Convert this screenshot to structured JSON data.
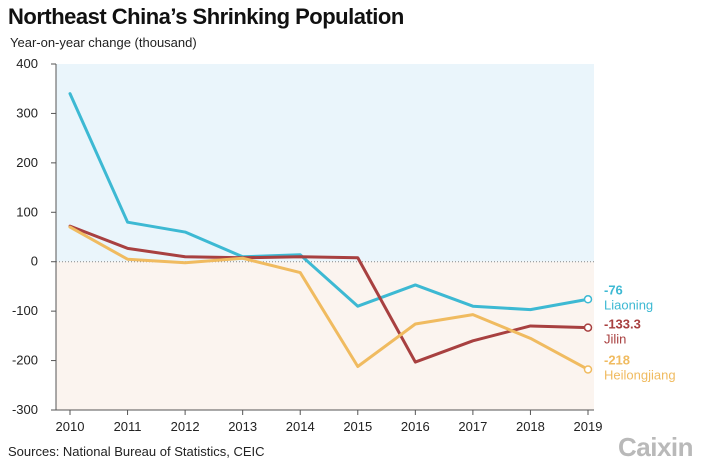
{
  "chart_data": {
    "type": "line",
    "title": "Northeast China’s Shrinking Population",
    "subtitle": "Year-on-year change (thousand)",
    "source": "Sources: National Bureau of Statistics, CEIC",
    "logo_text": "Caixin",
    "x": [
      "2010",
      "2011",
      "2012",
      "2013",
      "2014",
      "2015",
      "2016",
      "2017",
      "2018",
      "2019"
    ],
    "ylim": [
      -300,
      400
    ],
    "yticks": [
      "400",
      "300",
      "200",
      "100",
      "0",
      "-100",
      "-200",
      "-300"
    ],
    "ytick_values": [
      400,
      300,
      200,
      100,
      0,
      -100,
      -200,
      -300
    ],
    "background": {
      "positive": "#eaf5fb",
      "negative": "#fbf4ef"
    },
    "series": [
      {
        "name": "Liaoning",
        "end_label": "-76",
        "color": "#3db9d3",
        "values": [
          340,
          80,
          60,
          10,
          14,
          -90,
          -47,
          -90,
          -97,
          -76
        ]
      },
      {
        "name": "Jilin",
        "end_label": "-133.3",
        "color": "#a84040",
        "values": [
          72,
          27,
          10,
          8,
          10,
          8,
          -203,
          -160,
          -130,
          -133.3
        ]
      },
      {
        "name": "Heilongjiang",
        "end_label": "-218",
        "color": "#f0bb60",
        "values": [
          70,
          5,
          -2,
          7,
          -22,
          -212,
          -126,
          -107,
          -155,
          -218
        ]
      }
    ]
  }
}
